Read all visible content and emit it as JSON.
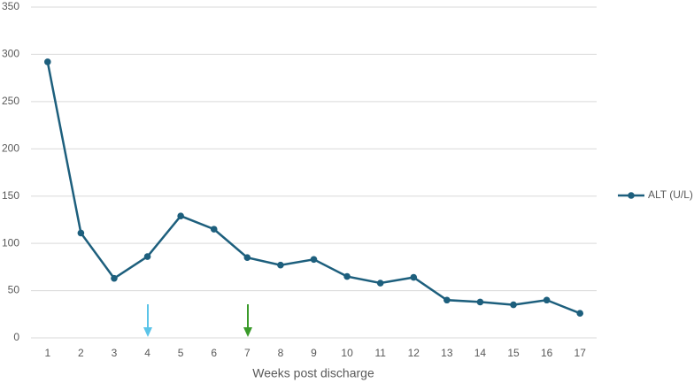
{
  "chart_data": {
    "type": "line",
    "x_label": "Weeks post discharge",
    "categories": [
      1,
      2,
      3,
      4,
      5,
      6,
      7,
      8,
      9,
      10,
      11,
      12,
      13,
      14,
      15,
      16,
      17
    ],
    "series": [
      {
        "name": "ALT (U/L)",
        "color": "#1d5f7d",
        "values": [
          292,
          111,
          63,
          86,
          129,
          115,
          85,
          77,
          83,
          65,
          58,
          64,
          40,
          38,
          35,
          40,
          26
        ]
      }
    ],
    "ylim": [
      0,
      350
    ],
    "yticks": [
      0,
      50,
      100,
      150,
      200,
      250,
      300,
      350
    ],
    "grid": true,
    "legend": "right"
  }
}
